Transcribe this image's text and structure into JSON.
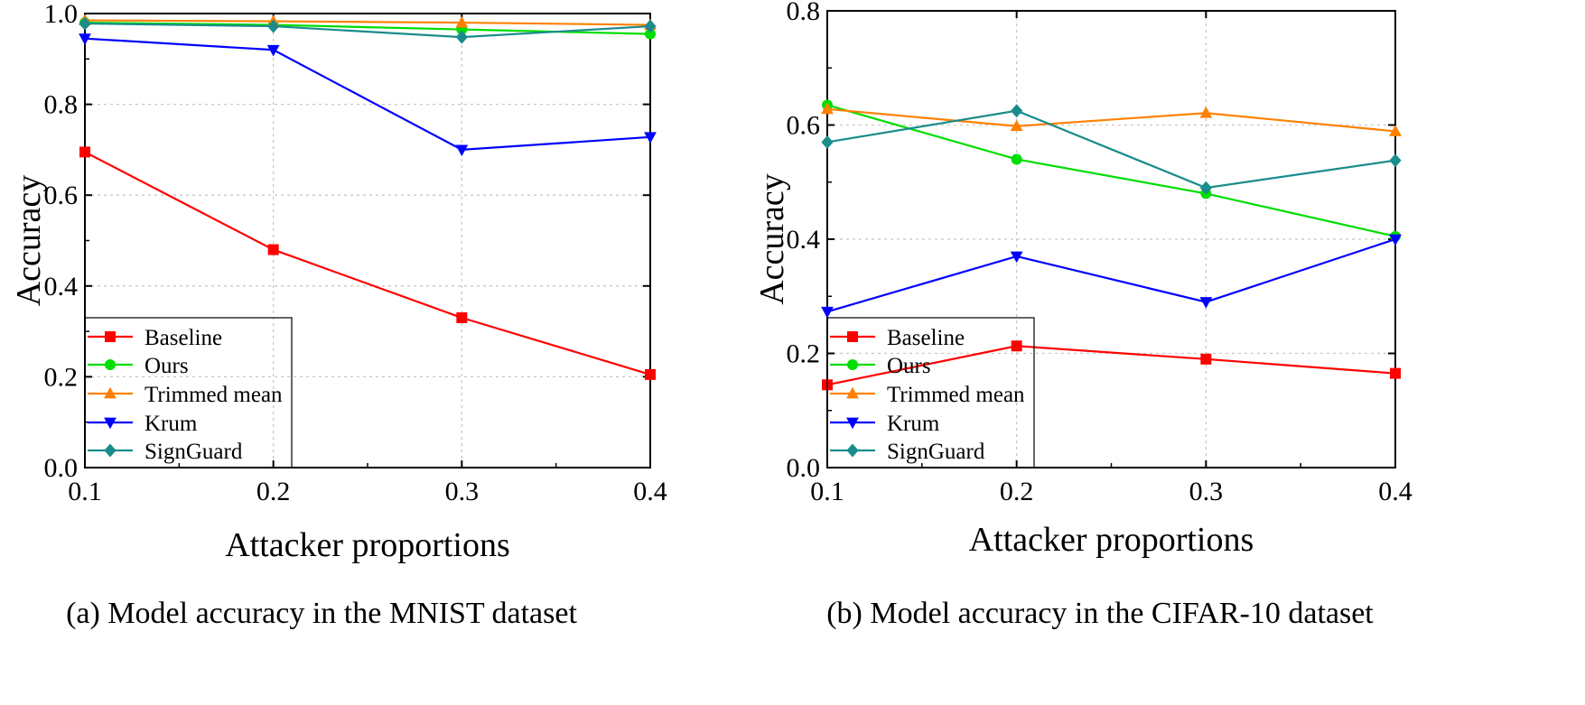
{
  "chart_data": [
    {
      "type": "line",
      "caption": "(a) Model accuracy in the MNIST dataset",
      "xlabel": "Attacker proportions",
      "ylabel": "Accuracy",
      "x": [
        0.1,
        0.2,
        0.3,
        0.4
      ],
      "xticks": [
        "0.1",
        "0.2",
        "0.3",
        "0.4"
      ],
      "xlim": [
        0.1,
        0.4
      ],
      "ylim": [
        0.0,
        1.0
      ],
      "yticks": [
        "0.0",
        "0.2",
        "0.4",
        "0.6",
        "0.8",
        "1.0"
      ],
      "grid": true,
      "legend_position": "bottom-left",
      "series": [
        {
          "name": "Baseline",
          "color": "#ff0000",
          "marker": "square",
          "values": [
            0.695,
            0.48,
            0.33,
            0.205
          ]
        },
        {
          "name": "Ours",
          "color": "#00dd00",
          "marker": "circle",
          "values": [
            0.98,
            0.975,
            0.965,
            0.955
          ]
        },
        {
          "name": "Trimmed mean",
          "color": "#ff8000",
          "marker": "triangle-up",
          "values": [
            0.985,
            0.983,
            0.98,
            0.975
          ]
        },
        {
          "name": "Krum",
          "color": "#0000ff",
          "marker": "triangle-down",
          "values": [
            0.945,
            0.92,
            0.7,
            0.728
          ]
        },
        {
          "name": "SignGuard",
          "color": "#1a8c8c",
          "marker": "diamond",
          "values": [
            0.978,
            0.972,
            0.948,
            0.972
          ]
        }
      ]
    },
    {
      "type": "line",
      "caption": "(b) Model accuracy in the CIFAR-10 dataset",
      "xlabel": "Attacker proportions",
      "ylabel": "Accuracy",
      "x": [
        0.1,
        0.2,
        0.3,
        0.4
      ],
      "xticks": [
        "0.1",
        "0.2",
        "0.3",
        "0.4"
      ],
      "xlim": [
        0.1,
        0.4
      ],
      "ylim": [
        0.0,
        0.8
      ],
      "yticks": [
        "0.0",
        "0.2",
        "0.4",
        "0.6",
        "0.8"
      ],
      "grid": true,
      "legend_position": "bottom-left",
      "series": [
        {
          "name": "Baseline",
          "color": "#ff0000",
          "marker": "square",
          "values": [
            0.145,
            0.213,
            0.19,
            0.165
          ]
        },
        {
          "name": "Ours",
          "color": "#00dd00",
          "marker": "circle",
          "values": [
            0.635,
            0.54,
            0.48,
            0.405
          ]
        },
        {
          "name": "Trimmed mean",
          "color": "#ff8000",
          "marker": "triangle-up",
          "values": [
            0.628,
            0.598,
            0.621,
            0.589
          ]
        },
        {
          "name": "Krum",
          "color": "#0000ff",
          "marker": "triangle-down",
          "values": [
            0.273,
            0.37,
            0.29,
            0.4
          ]
        },
        {
          "name": "SignGuard",
          "color": "#1a8c8c",
          "marker": "diamond",
          "values": [
            0.57,
            0.625,
            0.49,
            0.538
          ]
        }
      ]
    }
  ]
}
